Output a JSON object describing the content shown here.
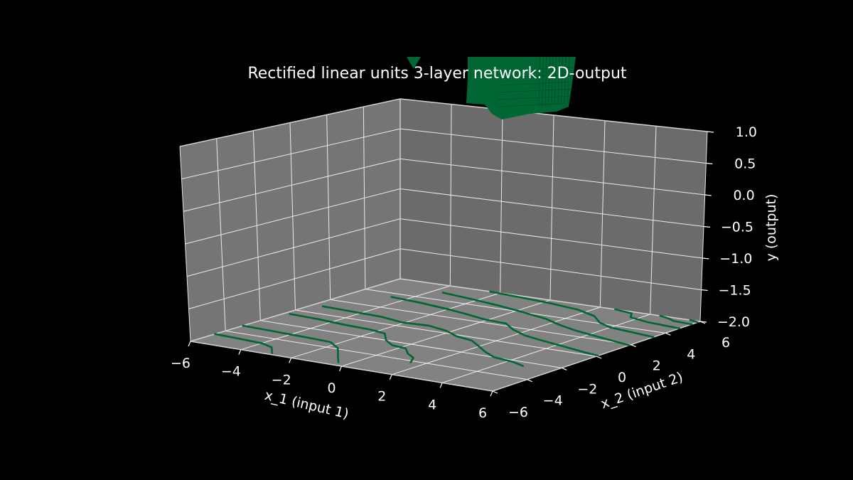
{
  "chart_data": {
    "type": "surface",
    "title": "Rectified linear units 3-layer network: 2D-output",
    "xlabel": "x_1 (input 1)",
    "ylabel": "x_2 (input 2)",
    "zlabel": "y (output)",
    "x_ticks": [
      "−6",
      "−4",
      "−2",
      "0",
      "2",
      "4",
      "6"
    ],
    "y_ticks": [
      "−6",
      "−4",
      "−2",
      "0",
      "2",
      "4",
      "6"
    ],
    "z_ticks": [
      "−2.0",
      "−1.5",
      "−1.0",
      "−0.5",
      "0.0",
      "0.5",
      "1.0"
    ],
    "xlim": [
      -6,
      6
    ],
    "ylim": [
      -6,
      6
    ],
    "zlim": [
      -2,
      1
    ],
    "grid": true,
    "colors": {
      "background": "#000000",
      "pane": "#757575",
      "grid": "#ffffff",
      "surface": "#006633",
      "contour": "#006633"
    },
    "contour_offset_z": -2,
    "contour_lines": [
      [
        [
          -6.0,
          -4.6
        ],
        [
          -4.9,
          -4.7
        ],
        [
          -4.0,
          -4.8
        ],
        [
          -3.4,
          -5.1
        ],
        [
          -2.9,
          -5.8
        ]
      ],
      [
        [
          -6.0,
          -3.0
        ],
        [
          -4.6,
          -3.1
        ],
        [
          -3.2,
          -3.2
        ],
        [
          -2.3,
          -3.3
        ],
        [
          -1.6,
          -3.9
        ],
        [
          -0.9,
          -4.9
        ],
        [
          -0.4,
          -5.6
        ]
      ],
      [
        [
          -5.8,
          -0.6
        ],
        [
          -4.6,
          -0.7
        ],
        [
          -3.4,
          -0.9
        ],
        [
          -2.3,
          -1.0
        ],
        [
          -1.6,
          -1.2
        ],
        [
          -1.0,
          -2.0
        ],
        [
          -0.4,
          -2.5
        ],
        [
          0.2,
          -2.6
        ],
        [
          0.7,
          -3.2
        ],
        [
          1.2,
          -3.6
        ],
        [
          1.5,
          -4.2
        ]
      ],
      [
        [
          -5.6,
          1.0
        ],
        [
          -4.3,
          0.9
        ],
        [
          -3.1,
          0.8
        ],
        [
          -2.1,
          0.5
        ],
        [
          -1.1,
          0.6
        ],
        [
          -0.2,
          0.3
        ],
        [
          0.6,
          -0.2
        ],
        [
          1.3,
          -0.4
        ],
        [
          1.9,
          -0.9
        ],
        [
          2.6,
          -1.5
        ],
        [
          3.3,
          -2.0
        ],
        [
          4.2,
          -2.2
        ],
        [
          4.8,
          -2.5
        ]
      ],
      [
        [
          -4.6,
          3.5
        ],
        [
          -3.3,
          3.3
        ],
        [
          -2.0,
          3.0
        ],
        [
          -1.0,
          2.7
        ],
        [
          -0.1,
          2.4
        ],
        [
          0.8,
          2.3
        ],
        [
          1.5,
          1.7
        ],
        [
          2.3,
          1.2
        ],
        [
          3.2,
          0.9
        ],
        [
          4.2,
          0.6
        ],
        [
          5.2,
          0.3
        ],
        [
          6.0,
          0.1
        ]
      ],
      [
        [
          -3.6,
          5.0
        ],
        [
          -2.2,
          4.7
        ],
        [
          -1.0,
          4.4
        ],
        [
          0.3,
          4.0
        ],
        [
          1.5,
          3.6
        ],
        [
          2.4,
          3.1
        ],
        [
          3.3,
          2.7
        ],
        [
          4.3,
          2.4
        ],
        [
          5.3,
          2.1
        ],
        [
          6.0,
          1.9
        ]
      ],
      [
        [
          -2.4,
          6.0
        ],
        [
          -1.0,
          5.8
        ],
        [
          0.3,
          5.6
        ],
        [
          1.6,
          5.3
        ],
        [
          2.6,
          4.8
        ],
        [
          3.3,
          4.1
        ],
        [
          4.0,
          3.7
        ],
        [
          5.0,
          3.5
        ],
        [
          6.0,
          3.3
        ]
      ],
      [
        [
          2.6,
          6.0
        ],
        [
          3.4,
          5.8
        ],
        [
          3.7,
          5.3
        ],
        [
          4.6,
          5.0
        ],
        [
          6.0,
          4.8
        ]
      ],
      [
        [
          4.4,
          6.0
        ],
        [
          4.9,
          5.8
        ],
        [
          5.2,
          5.6
        ],
        [
          6.0,
          5.5
        ]
      ],
      [
        [
          5.6,
          6.0
        ],
        [
          5.9,
          5.9
        ],
        [
          6.0,
          5.85
        ]
      ]
    ],
    "surface_z_above_limit": "surface rises above z = 1.0 and is clipped at the top of the figure"
  }
}
